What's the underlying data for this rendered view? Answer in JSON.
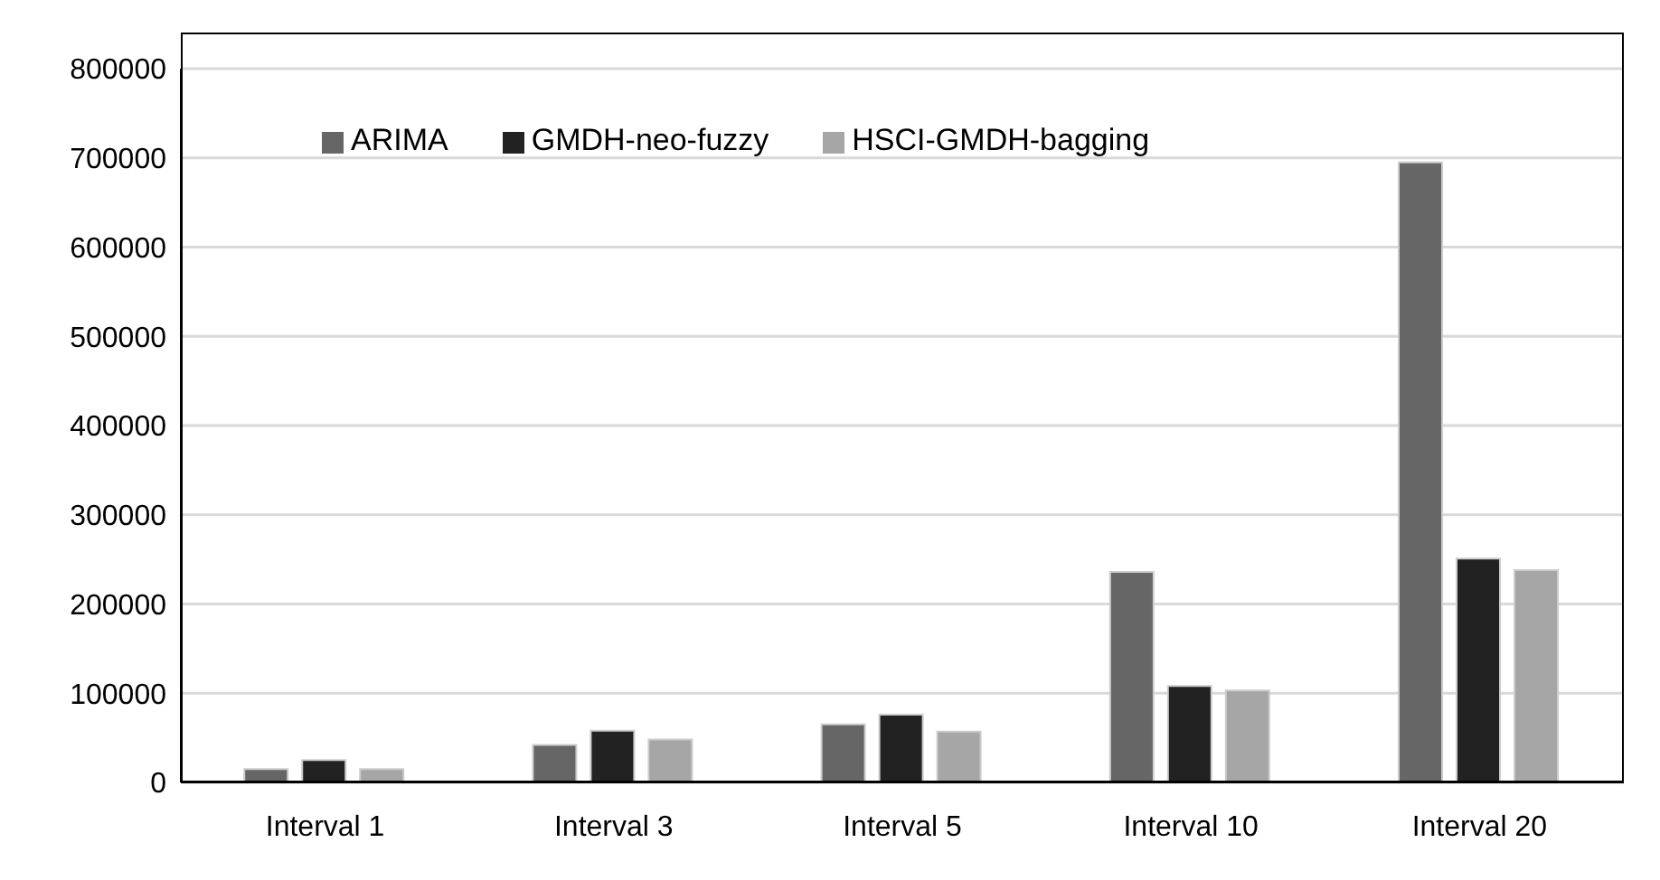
{
  "chart_data": {
    "type": "bar",
    "categories": [
      "Interval 1",
      "Interval 3",
      "Interval 5",
      "Interval 10",
      "Interval 20"
    ],
    "series": [
      {
        "name": "ARIMA",
        "color": "#666666",
        "values": [
          15000,
          42000,
          65000,
          236000,
          695000
        ]
      },
      {
        "name": "GMDH-neo-fuzzy",
        "color": "#222222",
        "values": [
          25000,
          58000,
          76000,
          108000,
          251000
        ]
      },
      {
        "name": "HSCI-GMDH-bagging",
        "color": "#a6a6a6",
        "values": [
          15000,
          48000,
          57000,
          103000,
          238000
        ]
      }
    ],
    "ylim": [
      0,
      800000
    ],
    "yticks": [
      0,
      100000,
      200000,
      300000,
      400000,
      500000,
      600000,
      700000,
      800000
    ],
    "grid": "y",
    "legend": "top left"
  }
}
